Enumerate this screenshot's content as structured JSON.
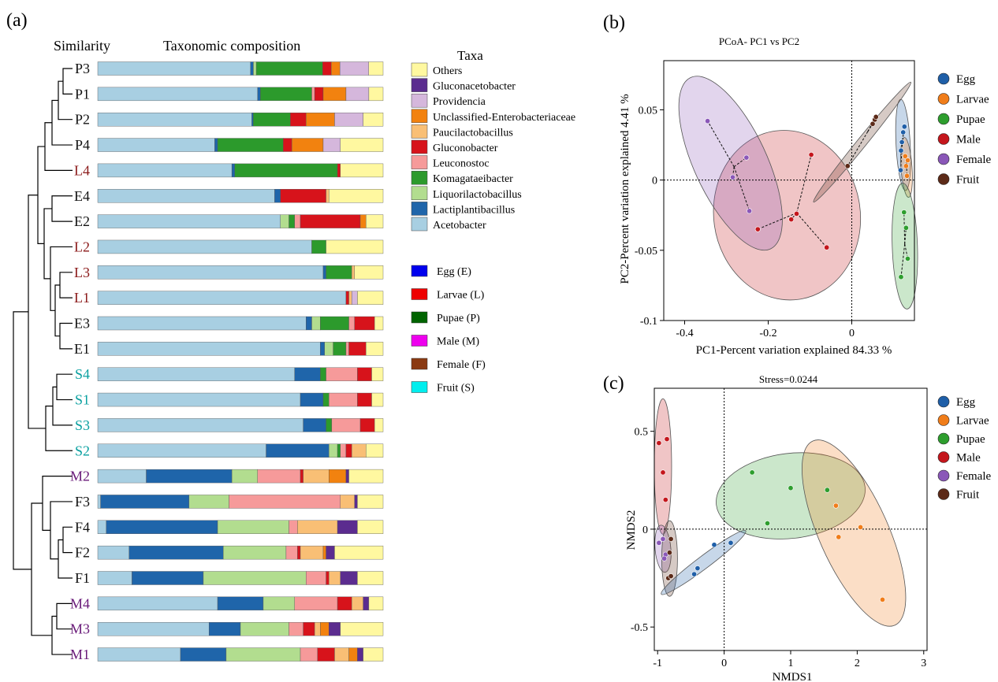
{
  "panel_a": {
    "label": "(a)",
    "similarity_title": "Similarity",
    "composition_title": "Taxonomic composition",
    "legend_title": "Taxa",
    "group_legend": [
      {
        "label": "Egg (E)",
        "color": "#0000ee"
      },
      {
        "label": "Larvae (L)",
        "color": "#ee0000"
      },
      {
        "label": "Pupae (P)",
        "color": "#006400"
      },
      {
        "label": "Male (M)",
        "color": "#ee00ee"
      },
      {
        "label": "Female (F)",
        "color": "#8b3a12"
      },
      {
        "label": "Fruit (S)",
        "color": "#00eeee"
      }
    ]
  },
  "panel_b": {
    "label": "(b)",
    "title": "PCoA- PC1 vs PC2",
    "xlabel": "PC1-Percent variation explained 84.33 %",
    "ylabel": "PC2-Percent variation explained 4.41 %",
    "xticks": [
      "-0.4",
      "-0.2",
      "0"
    ],
    "yticks": [
      "0.05",
      "0",
      "-0.05",
      "-0.1"
    ]
  },
  "panel_c": {
    "label": "(c)",
    "title": "Stress=0.0244",
    "xlabel": "NMDS1",
    "ylabel": "NMDS2",
    "xticks": [
      "-1",
      "0",
      "1",
      "2",
      "3"
    ],
    "yticks": [
      "0.5",
      "0",
      "-0.5"
    ]
  },
  "group_colors": {
    "Egg": "#1f5fa8",
    "Larvae": "#f07d1a",
    "Pupae": "#2e9e2e",
    "Male": "#c4161c",
    "Female": "#8a57b8",
    "Fruit": "#5c2a18"
  },
  "chart_data": [
    {
      "type": "bar",
      "stacked": true,
      "orientation": "horizontal",
      "taxa": [
        {
          "name": "Others",
          "color": "#fff8a0"
        },
        {
          "name": "Gluconacetobacter",
          "color": "#5b2c8f"
        },
        {
          "name": "Providencia",
          "color": "#d5b7dc"
        },
        {
          "name": "Unclassified-Enterobacteriaceae",
          "color": "#f2820f"
        },
        {
          "name": "Paucilactobacillus",
          "color": "#f9bf75"
        },
        {
          "name": "Gluconobacter",
          "color": "#d7131b"
        },
        {
          "name": "Leuconostoc",
          "color": "#f69a9a"
        },
        {
          "name": "Komagataeibacter",
          "color": "#2c9a2c"
        },
        {
          "name": "Liquorilactobacillus",
          "color": "#b2dd8f"
        },
        {
          "name": "Lactiplantibacillus",
          "color": "#1f65aa"
        },
        {
          "name": "Acetobacter",
          "color": "#a8cfe2"
        }
      ],
      "samples": [
        {
          "name": "P3",
          "color": "#111111",
          "values": {
            "Acetobacter": 53,
            "Lactiplantibacillus": 1,
            "Liquorilactobacillus": 1,
            "Komagataeibacter": 23,
            "Gluconobacter": 3,
            "Unclassified-Enterobacteriaceae": 3,
            "Providencia": 10,
            "Others": 5
          }
        },
        {
          "name": "P1",
          "color": "#111111",
          "values": {
            "Acetobacter": 56,
            "Lactiplantibacillus": 1,
            "Komagataeibacter": 18,
            "Leuconostoc": 1,
            "Gluconobacter": 3,
            "Unclassified-Enterobacteriaceae": 8,
            "Providencia": 8,
            "Others": 5
          }
        },
        {
          "name": "P2",
          "color": "#111111",
          "values": {
            "Acetobacter": 54,
            "Lactiplantibacillus": 0.5,
            "Komagataeibacter": 13,
            "Gluconobacter": 5.5,
            "Unclassified-Enterobacteriaceae": 10,
            "Providencia": 10,
            "Others": 7
          }
        },
        {
          "name": "P4",
          "color": "#111111",
          "values": {
            "Acetobacter": 41,
            "Lactiplantibacillus": 1,
            "Komagataeibacter": 23,
            "Gluconobacter": 3,
            "Unclassified-Enterobacteriaceae": 11,
            "Providencia": 6,
            "Others": 15
          }
        },
        {
          "name": "L4",
          "color": "#8b1a1a",
          "values": {
            "Acetobacter": 47,
            "Lactiplantibacillus": 1,
            "Komagataeibacter": 36,
            "Gluconobacter": 1,
            "Others": 15
          }
        },
        {
          "name": "E4",
          "color": "#111111",
          "values": {
            "Acetobacter": 62,
            "Lactiplantibacillus": 2,
            "Gluconobacter": 16,
            "Paucilactobacillus": 1,
            "Others": 19
          }
        },
        {
          "name": "E2",
          "color": "#111111",
          "values": {
            "Acetobacter": 64,
            "Liquorilactobacillus": 3,
            "Komagataeibacter": 2,
            "Leuconostoc": 2,
            "Gluconobacter": 21,
            "Unclassified-Enterobacteriaceae": 2,
            "Others": 6
          }
        },
        {
          "name": "L2",
          "color": "#8b1a1a",
          "values": {
            "Acetobacter": 75,
            "Komagataeibacter": 5,
            "Others": 20
          }
        },
        {
          "name": "L3",
          "color": "#8b1a1a",
          "values": {
            "Acetobacter": 79,
            "Lactiplantibacillus": 1,
            "Komagataeibacter": 9,
            "Paucilactobacillus": 1,
            "Others": 10
          }
        },
        {
          "name": "L1",
          "color": "#8b1a1a",
          "values": {
            "Acetobacter": 87,
            "Gluconobacter": 1,
            "Paucilactobacillus": 1,
            "Providencia": 2,
            "Others": 9
          }
        },
        {
          "name": "E3",
          "color": "#111111",
          "values": {
            "Acetobacter": 73,
            "Lactiplantibacillus": 2,
            "Liquorilactobacillus": 3,
            "Komagataeibacter": 10,
            "Leuconostoc": 2,
            "Gluconobacter": 7,
            "Others": 3
          }
        },
        {
          "name": "E1",
          "color": "#111111",
          "values": {
            "Acetobacter": 78,
            "Lactiplantibacillus": 1.5,
            "Liquorilactobacillus": 3,
            "Komagataeibacter": 4.5,
            "Leuconostoc": 1,
            "Gluconobacter": 6,
            "Others": 6
          }
        },
        {
          "name": "S4",
          "color": "#0aa0a0",
          "values": {
            "Acetobacter": 69,
            "Lactiplantibacillus": 9,
            "Komagataeibacter": 2,
            "Leuconostoc": 11,
            "Gluconobacter": 5,
            "Others": 4
          }
        },
        {
          "name": "S1",
          "color": "#0aa0a0",
          "values": {
            "Acetobacter": 71,
            "Lactiplantibacillus": 8,
            "Komagataeibacter": 2,
            "Leuconostoc": 10,
            "Gluconobacter": 5,
            "Others": 4
          }
        },
        {
          "name": "S3",
          "color": "#0aa0a0",
          "values": {
            "Acetobacter": 72,
            "Lactiplantibacillus": 8,
            "Komagataeibacter": 2,
            "Leuconostoc": 10,
            "Gluconobacter": 5,
            "Others": 3
          }
        },
        {
          "name": "S2",
          "color": "#0aa0a0",
          "values": {
            "Acetobacter": 59,
            "Lactiplantibacillus": 22,
            "Liquorilactobacillus": 3,
            "Komagataeibacter": 1,
            "Leuconostoc": 2,
            "Gluconobacter": 2,
            "Paucilactobacillus": 5,
            "Others": 6
          }
        },
        {
          "name": "M2",
          "color": "#6a1b7a",
          "values": {
            "Acetobacter": 17,
            "Lactiplantibacillus": 30,
            "Liquorilactobacillus": 9,
            "Leuconostoc": 15,
            "Gluconobacter": 1,
            "Paucilactobacillus": 9,
            "Unclassified-Enterobacteriaceae": 6,
            "Gluconacetobacter": 1,
            "Others": 12
          }
        },
        {
          "name": "F3",
          "color": "#111111",
          "values": {
            "Acetobacter": 1,
            "Lactiplantibacillus": 31,
            "Liquorilactobacillus": 14,
            "Leuconostoc": 39,
            "Paucilactobacillus": 5,
            "Gluconacetobacter": 1,
            "Others": 9
          }
        },
        {
          "name": "F4",
          "color": "#111111",
          "values": {
            "Acetobacter": 3,
            "Lactiplantibacillus": 39,
            "Liquorilactobacillus": 25,
            "Leuconostoc": 3,
            "Paucilactobacillus": 14,
            "Gluconacetobacter": 7,
            "Others": 9
          }
        },
        {
          "name": "F2",
          "color": "#111111",
          "values": {
            "Acetobacter": 11,
            "Lactiplantibacillus": 33,
            "Liquorilactobacillus": 22,
            "Leuconostoc": 4,
            "Gluconobacter": 1,
            "Paucilactobacillus": 8,
            "Unclassified-Enterobacteriaceae": 1,
            "Gluconacetobacter": 3,
            "Others": 17
          }
        },
        {
          "name": "F1",
          "color": "#111111",
          "values": {
            "Acetobacter": 12,
            "Lactiplantibacillus": 25,
            "Liquorilactobacillus": 36,
            "Leuconostoc": 7,
            "Gluconobacter": 1,
            "Paucilactobacillus": 4,
            "Gluconacetobacter": 6,
            "Others": 9
          }
        },
        {
          "name": "M4",
          "color": "#6a1b7a",
          "values": {
            "Acetobacter": 42,
            "Lactiplantibacillus": 16,
            "Liquorilactobacillus": 11,
            "Leuconostoc": 15,
            "Gluconobacter": 5,
            "Paucilactobacillus": 4,
            "Gluconacetobacter": 2,
            "Others": 5
          }
        },
        {
          "name": "M3",
          "color": "#6a1b7a",
          "values": {
            "Acetobacter": 39,
            "Lactiplantibacillus": 11,
            "Liquorilactobacillus": 17,
            "Leuconostoc": 5,
            "Gluconobacter": 4,
            "Paucilactobacillus": 2,
            "Unclassified-Enterobacteriaceae": 3,
            "Gluconacetobacter": 4,
            "Others": 15
          }
        },
        {
          "name": "M1",
          "color": "#6a1b7a",
          "values": {
            "Acetobacter": 29,
            "Lactiplantibacillus": 16,
            "Liquorilactobacillus": 26,
            "Leuconostoc": 6,
            "Gluconobacter": 6,
            "Paucilactobacillus": 5,
            "Unclassified-Enterobacteriaceae": 3,
            "Gluconacetobacter": 2,
            "Others": 7
          }
        }
      ]
    },
    {
      "type": "scatter",
      "title": "PCoA- PC1 vs PC2",
      "xlabel": "PC1-Percent variation explained 84.33 %",
      "ylabel": "PC2-Percent variation explained 4.41 %",
      "xlim": [
        -0.45,
        0.15
      ],
      "ylim": [
        -0.1,
        0.085
      ],
      "reference_lines": {
        "x": 0,
        "y": 0
      },
      "legend_position": "right",
      "series": [
        {
          "name": "Egg",
          "points": [
            [
              0.117,
              0.007
            ],
            [
              0.118,
              0.021
            ],
            [
              0.12,
              0.027
            ],
            [
              0.123,
              0.034
            ],
            [
              0.126,
              0.038
            ]
          ]
        },
        {
          "name": "Larvae",
          "points": [
            [
              0.128,
              0.017
            ],
            [
              0.13,
              0.01
            ],
            [
              0.132,
              0.003
            ],
            [
              0.134,
              0.014
            ]
          ]
        },
        {
          "name": "Pupae",
          "points": [
            [
              0.118,
              -0.069
            ],
            [
              0.125,
              -0.023
            ],
            [
              0.13,
              -0.034
            ],
            [
              0.134,
              -0.056
            ]
          ]
        },
        {
          "name": "Male",
          "points": [
            [
              -0.225,
              -0.035
            ],
            [
              -0.145,
              -0.028
            ],
            [
              -0.132,
              -0.024
            ],
            [
              -0.097,
              0.018
            ],
            [
              -0.06,
              -0.048
            ]
          ]
        },
        {
          "name": "Female",
          "points": [
            [
              -0.345,
              0.042
            ],
            [
              -0.285,
              0.002
            ],
            [
              -0.252,
              0.016
            ],
            [
              -0.245,
              -0.022
            ]
          ]
        },
        {
          "name": "Fruit",
          "points": [
            [
              -0.01,
              0.01
            ],
            [
              0.05,
              0.04
            ],
            [
              0.055,
              0.043
            ],
            [
              0.058,
              0.045
            ]
          ]
        }
      ]
    },
    {
      "type": "scatter",
      "title": "Stress=0.0244",
      "xlabel": "NMDS1",
      "ylabel": "NMDS2",
      "xlim": [
        -1.05,
        3.05
      ],
      "ylim": [
        -0.62,
        0.72
      ],
      "reference_lines": {
        "x": 0,
        "y": 0
      },
      "legend_position": "right",
      "series": [
        {
          "name": "Egg",
          "points": [
            [
              -0.45,
              -0.23
            ],
            [
              -0.4,
              -0.2
            ],
            [
              -0.15,
              -0.08
            ],
            [
              0.1,
              -0.07
            ]
          ]
        },
        {
          "name": "Larvae",
          "points": [
            [
              1.68,
              0.12
            ],
            [
              1.72,
              -0.04
            ],
            [
              2.05,
              0.01
            ],
            [
              2.38,
              -0.36
            ]
          ]
        },
        {
          "name": "Pupae",
          "points": [
            [
              0.42,
              0.29
            ],
            [
              0.65,
              0.03
            ],
            [
              1.0,
              0.21
            ],
            [
              1.55,
              0.2
            ]
          ]
        },
        {
          "name": "Male",
          "points": [
            [
              -0.98,
              0.44
            ],
            [
              -0.86,
              0.46
            ],
            [
              -0.92,
              0.29
            ],
            [
              -0.88,
              0.15
            ]
          ]
        },
        {
          "name": "Female",
          "points": [
            [
              -0.98,
              -0.07
            ],
            [
              -0.92,
              -0.05
            ],
            [
              -0.88,
              -0.13
            ],
            [
              -0.9,
              -0.15
            ]
          ]
        },
        {
          "name": "Fruit",
          "points": [
            [
              -0.8,
              -0.05
            ],
            [
              -0.82,
              -0.12
            ],
            [
              -0.84,
              -0.25
            ],
            [
              -0.8,
              -0.24
            ]
          ]
        }
      ]
    }
  ]
}
